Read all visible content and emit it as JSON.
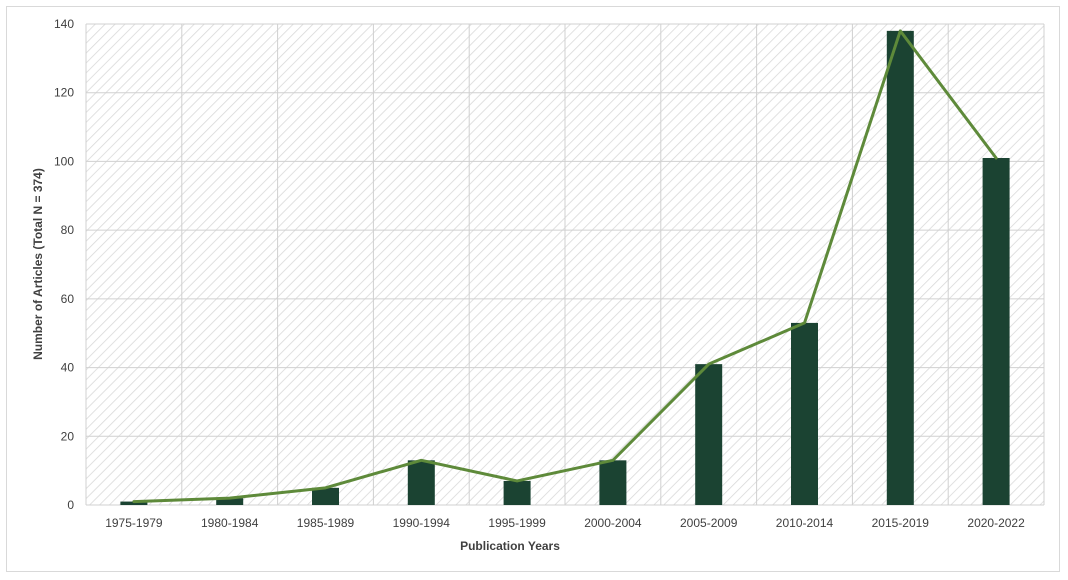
{
  "chart_data": {
    "type": "bar",
    "title": "",
    "xlabel": "Publication Years",
    "ylabel": "Number of Articles (Total N = 374)",
    "categories": [
      "1975-1979",
      "1980-1984",
      "1985-1989",
      "1990-1994",
      "1995-1999",
      "2000-2004",
      "2005-2009",
      "2010-2014",
      "2015-2019",
      "2020-2022"
    ],
    "series": [
      {
        "values": [
          1,
          2,
          5,
          13,
          7,
          13,
          41,
          53,
          138,
          101
        ],
        "color": "#1b4332",
        "render": "bar"
      },
      {
        "values": [
          1,
          2,
          5,
          13,
          7,
          13,
          41,
          53,
          138,
          101
        ],
        "color": "#5e8a3a",
        "render": "line"
      }
    ],
    "ylim": [
      0,
      140
    ],
    "yticks": [
      0,
      20,
      40,
      60,
      80,
      100,
      120,
      140
    ],
    "grid": true,
    "legend": "none",
    "plot_background": "hatched light gray"
  }
}
